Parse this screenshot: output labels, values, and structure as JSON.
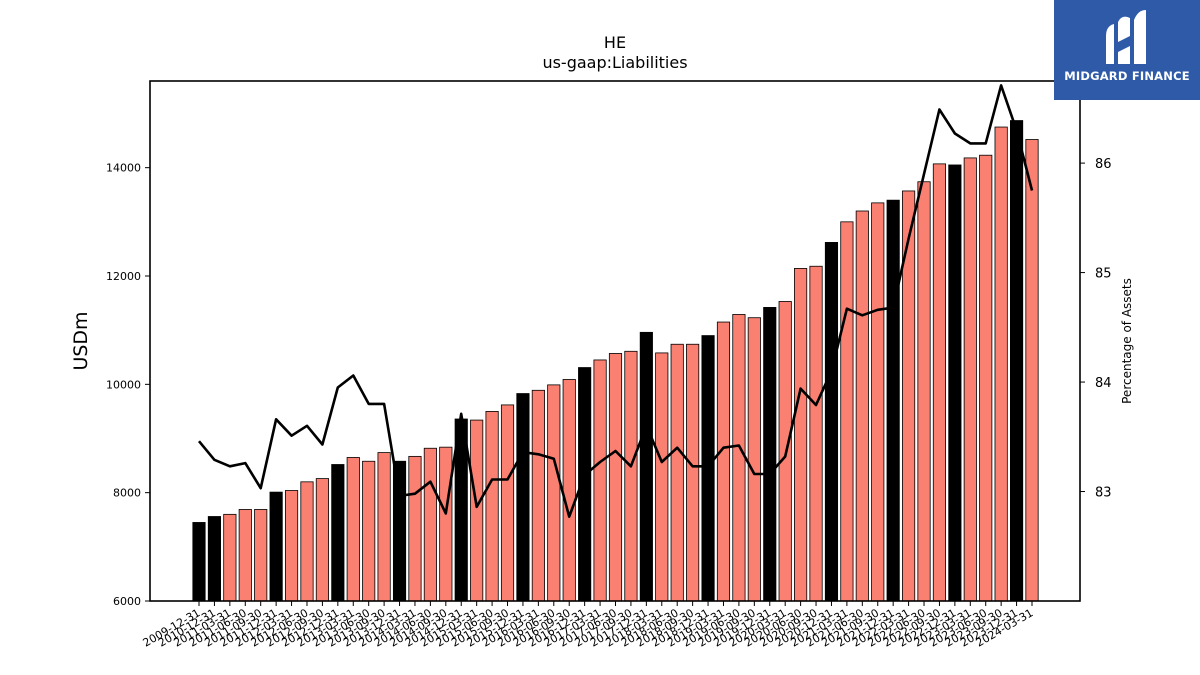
{
  "chart_data": {
    "type": "bar",
    "title": "HE",
    "subtitle": "us-gaap:Liabilities",
    "ylabel": "USDm",
    "y2label": "Percentage of Assets",
    "ylim": [
      6000,
      15600
    ],
    "y2lim": [
      82.0,
      86.75
    ],
    "yticks": [
      6000,
      8000,
      10000,
      12000,
      14000
    ],
    "y2ticks": [
      83,
      84,
      85,
      86
    ],
    "colors": {
      "annual": "#000000",
      "quarterly": "#fa8072",
      "line": "#000000"
    },
    "categories": [
      "2009-12-31",
      "2010-12-31",
      "2011-03-31",
      "2011-06-30",
      "2011-09-30",
      "2011-12-31",
      "2012-03-31",
      "2012-06-30",
      "2012-09-30",
      "2012-12-31",
      "2013-03-31",
      "2013-06-30",
      "2013-09-30",
      "2013-12-31",
      "2014-03-31",
      "2014-06-30",
      "2014-09-30",
      "2014-12-31",
      "2015-03-31",
      "2015-06-30",
      "2015-09-30",
      "2015-12-31",
      "2016-03-31",
      "2016-06-30",
      "2016-09-30",
      "2016-12-31",
      "2017-03-31",
      "2017-06-30",
      "2017-09-30",
      "2017-12-31",
      "2018-03-31",
      "2018-06-30",
      "2018-09-30",
      "2018-12-31",
      "2019-03-31",
      "2019-06-30",
      "2019-09-30",
      "2019-12-31",
      "2020-03-31",
      "2020-06-30",
      "2020-09-30",
      "2020-12-31",
      "2021-03-31",
      "2021-06-30",
      "2021-09-30",
      "2021-12-31",
      "2022-03-31",
      "2022-06-30",
      "2022-09-30",
      "2022-12-31",
      "2023-03-31",
      "2023-06-30",
      "2023-09-30",
      "2023-12-31",
      "2024-03-31"
    ],
    "series": [
      {
        "kind": "bar",
        "values": [
          7450,
          7560,
          7600,
          7690,
          7690,
          8010,
          8040,
          8200,
          8260,
          8520,
          8650,
          8580,
          8740,
          8580,
          8670,
          8820,
          8840,
          9360,
          9340,
          9500,
          9620,
          9830,
          9890,
          9990,
          10090,
          10310,
          10450,
          10570,
          10610,
          10960,
          10580,
          10740,
          10740,
          10900,
          11150,
          11290,
          11230,
          11420,
          11530,
          12140,
          12180,
          12620,
          13000,
          13200,
          13350,
          13400,
          13570,
          13740,
          14070,
          14050,
          14180,
          14230,
          14750,
          14870,
          14520
        ],
        "annual": [
          true,
          true,
          false,
          false,
          false,
          true,
          false,
          false,
          false,
          true,
          false,
          false,
          false,
          true,
          false,
          false,
          false,
          true,
          false,
          false,
          false,
          true,
          false,
          false,
          false,
          true,
          false,
          false,
          false,
          true,
          false,
          false,
          false,
          true,
          false,
          false,
          false,
          true,
          false,
          false,
          false,
          true,
          false,
          false,
          false,
          true,
          false,
          false,
          false,
          true,
          false,
          false,
          false,
          true,
          false
        ]
      },
      {
        "kind": "line",
        "values": [
          83.46,
          83.29,
          83.23,
          83.26,
          83.03,
          83.66,
          83.51,
          83.6,
          83.43,
          83.95,
          84.06,
          83.8,
          83.8,
          82.96,
          82.98,
          83.09,
          82.8,
          83.71,
          82.86,
          83.11,
          83.11,
          83.36,
          83.34,
          83.3,
          82.77,
          83.15,
          83.27,
          83.37,
          83.23,
          83.6,
          83.27,
          83.4,
          83.23,
          83.23,
          83.4,
          83.42,
          83.16,
          83.16,
          83.32,
          83.94,
          83.79,
          84.1,
          84.67,
          84.61,
          84.66,
          84.68,
          85.31,
          85.9,
          86.49,
          86.27,
          86.18,
          86.18,
          86.71,
          86.3,
          85.75
        ]
      }
    ]
  },
  "logo": {
    "text": "MIDGARD FINANCE"
  }
}
